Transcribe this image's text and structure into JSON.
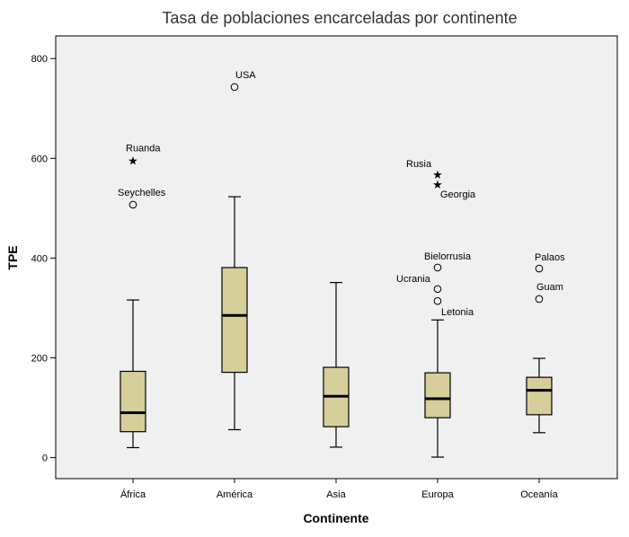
{
  "chart_data": {
    "type": "box",
    "title": "Tasa de poblaciones encarceladas por continente",
    "xlabel": "Continente",
    "ylabel": "TPE",
    "ylim": [
      -40,
      840
    ],
    "yticks": [
      0,
      200,
      400,
      600,
      800
    ],
    "grid": false,
    "colors": {
      "box_fill": "#d6cf9b",
      "plot_bg": "#f0f0f0",
      "frame": "#000000"
    },
    "categories": [
      "África",
      "América",
      "Asia",
      "Europa",
      "Oceanía"
    ],
    "boxes": [
      {
        "category": "África",
        "min": 20,
        "q1": 52,
        "median": 90,
        "q3": 173,
        "max": 316,
        "outliers": [
          {
            "label": "Ruanda",
            "value": 596,
            "marker": "star"
          },
          {
            "label": "Seychelles",
            "value": 507,
            "marker": "circle"
          }
        ]
      },
      {
        "category": "América",
        "min": 56,
        "q1": 171,
        "median": 285,
        "q3": 381,
        "max": 523,
        "outliers": [
          {
            "label": "USA",
            "value": 743,
            "marker": "circle"
          }
        ]
      },
      {
        "category": "Asia",
        "min": 21,
        "q1": 62,
        "median": 123,
        "q3": 181,
        "max": 351,
        "outliers": []
      },
      {
        "category": "Europa",
        "min": 1,
        "q1": 80,
        "median": 118,
        "q3": 170,
        "max": 276,
        "outliers": [
          {
            "label": "Rusia",
            "value": 568,
            "marker": "star"
          },
          {
            "label": "Georgia",
            "value": 548,
            "marker": "star"
          },
          {
            "label": "Bielorrusia",
            "value": 381,
            "marker": "circle"
          },
          {
            "label": "Ucrania",
            "value": 338,
            "marker": "circle"
          },
          {
            "label": "Letonia",
            "value": 314,
            "marker": "circle"
          }
        ]
      },
      {
        "category": "Oceanía",
        "min": 50,
        "q1": 86,
        "median": 135,
        "q3": 161,
        "max": 199,
        "outliers": [
          {
            "label": "Palaos",
            "value": 379,
            "marker": "circle"
          },
          {
            "label": "Guam",
            "value": 318,
            "marker": "circle"
          }
        ]
      }
    ]
  }
}
